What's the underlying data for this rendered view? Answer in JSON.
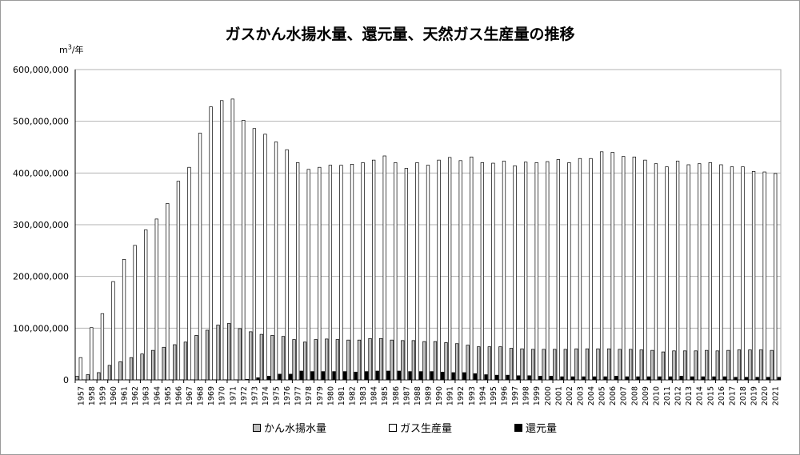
{
  "chart_data": {
    "type": "bar",
    "title": "ガスかん水揚水量、還元量、天然ガス生産量の推移",
    "ylabel": "m3/年",
    "ylabel_base": "m",
    "ylabel_sup": "3",
    "ylabel_rest": "/年",
    "ylim": [
      0,
      600000000
    ],
    "yticks": [
      0,
      100000000,
      200000000,
      300000000,
      400000000,
      500000000,
      600000000
    ],
    "ytick_labels": [
      "0",
      "100,000,000",
      "200,000,000",
      "300,000,000",
      "400,000,000",
      "500,000,000",
      "600,000,000"
    ],
    "grid": true,
    "legend_position": "bottom",
    "categories": [
      "1957",
      "1958",
      "1959",
      "1960",
      "1961",
      "1962",
      "1963",
      "1964",
      "1965",
      "1966",
      "1967",
      "1968",
      "1969",
      "1970",
      "1971",
      "1972",
      "1973",
      "1974",
      "1975",
      "1976",
      "1977",
      "1978",
      "1979",
      "1980",
      "1981",
      "1982",
      "1983",
      "1984",
      "1985",
      "1986",
      "1987",
      "1988",
      "1989",
      "1990",
      "1991",
      "1992",
      "1993",
      "1994",
      "1995",
      "1996",
      "1997",
      "1998",
      "1999",
      "2000",
      "2001",
      "2002",
      "2003",
      "2004",
      "2005",
      "2006",
      "2007",
      "2008",
      "2009",
      "2010",
      "2011",
      "2012",
      "2013",
      "2014",
      "2015",
      "2016",
      "2017",
      "2018",
      "2019",
      "2020",
      "2021"
    ],
    "series": [
      {
        "name": "かん水揚水量",
        "color": "#bfbfbf",
        "values": [
          7000000,
          10000000,
          14000000,
          28000000,
          35000000,
          43000000,
          50000000,
          57000000,
          63000000,
          68000000,
          73000000,
          86000000,
          96000000,
          106000000,
          109000000,
          99000000,
          93000000,
          88000000,
          86000000,
          84000000,
          78000000,
          73000000,
          78000000,
          79000000,
          78000000,
          77000000,
          77000000,
          80000000,
          80000000,
          77000000,
          76000000,
          76000000,
          74000000,
          74000000,
          72000000,
          70000000,
          67000000,
          64000000,
          64000000,
          64000000,
          61000000,
          60000000,
          59000000,
          59000000,
          59000000,
          59000000,
          60000000,
          60000000,
          60000000,
          60000000,
          59000000,
          59000000,
          58000000,
          57000000,
          54000000,
          56000000,
          56000000,
          56000000,
          57000000,
          56000000,
          57000000,
          58000000,
          58000000,
          58000000,
          57000000
        ]
      },
      {
        "name": "ガス生産量",
        "color": "#ffffff",
        "values": [
          43000000,
          101000000,
          128000000,
          190000000,
          233000000,
          260000000,
          290000000,
          311000000,
          341000000,
          384000000,
          411000000,
          477000000,
          528000000,
          540000000,
          543000000,
          502000000,
          486000000,
          475000000,
          460000000,
          445000000,
          420000000,
          407000000,
          411000000,
          415000000,
          415000000,
          417000000,
          420000000,
          425000000,
          433000000,
          420000000,
          409000000,
          420000000,
          415000000,
          425000000,
          430000000,
          424000000,
          431000000,
          420000000,
          419000000,
          423000000,
          414000000,
          421000000,
          420000000,
          422000000,
          426000000,
          420000000,
          428000000,
          428000000,
          441000000,
          440000000,
          432000000,
          431000000,
          425000000,
          418000000,
          412000000,
          423000000,
          416000000,
          418000000,
          420000000,
          416000000,
          412000000,
          412000000,
          403000000,
          402000000,
          399000000
        ]
      },
      {
        "name": "還元量",
        "color": "#000000",
        "values": [
          0,
          0,
          0,
          0,
          0,
          0,
          0,
          0,
          0,
          0,
          0,
          0,
          0,
          0,
          0,
          1000000,
          4000000,
          7000000,
          11000000,
          11000000,
          17000000,
          16000000,
          16000000,
          16000000,
          16000000,
          15000000,
          16000000,
          17000000,
          17000000,
          17000000,
          16000000,
          16000000,
          16000000,
          15000000,
          14000000,
          14000000,
          12000000,
          10000000,
          9000000,
          9000000,
          8000000,
          8000000,
          7000000,
          7000000,
          6000000,
          6000000,
          6000000,
          6000000,
          6000000,
          7000000,
          6000000,
          6000000,
          6000000,
          6000000,
          6000000,
          7000000,
          6000000,
          6000000,
          6000000,
          6000000,
          5000000,
          5000000,
          5000000,
          5000000,
          5000000
        ]
      }
    ]
  }
}
